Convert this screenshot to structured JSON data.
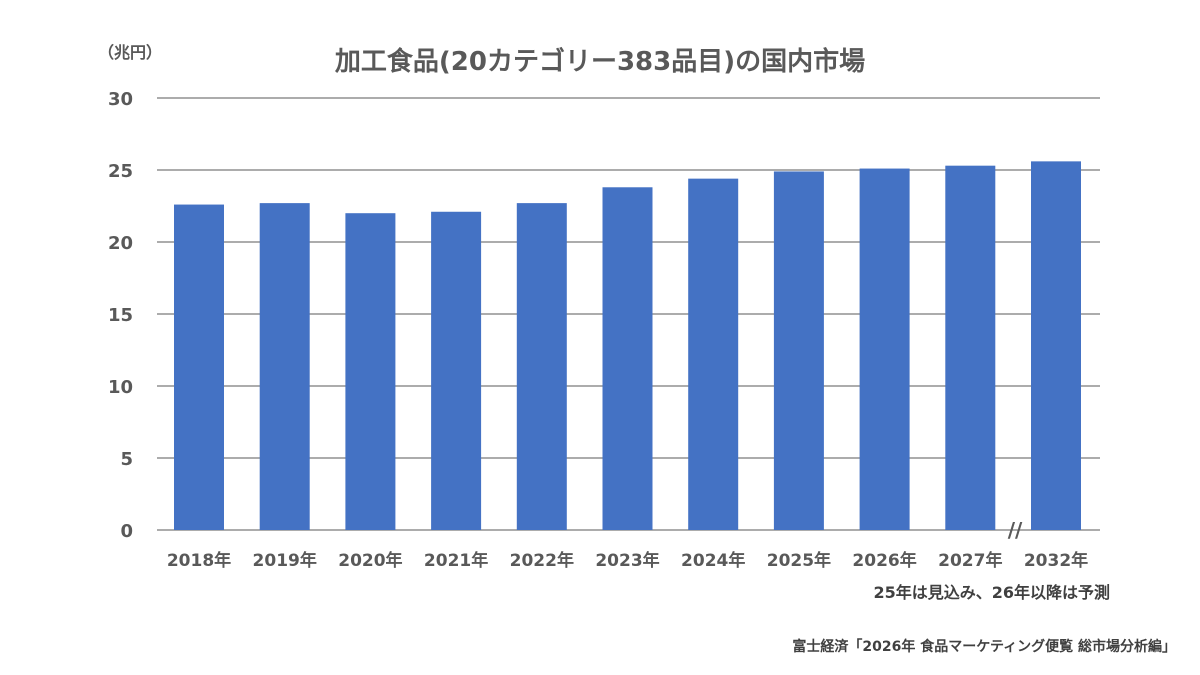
{
  "chart_data": {
    "type": "bar",
    "title": "加工食品(20カテゴリー383品目)の国内市場",
    "unit_label": "（兆円）",
    "categories": [
      "2018年",
      "2019年",
      "2020年",
      "2021年",
      "2022年",
      "2023年",
      "2024年",
      "2025年",
      "2026年",
      "2027年",
      "2032年"
    ],
    "series": [
      {
        "values": [
          22.6,
          22.7,
          22.0,
          22.1,
          22.7,
          23.8,
          24.4,
          24.9,
          25.1,
          25.3,
          25.6
        ],
        "color": "#4472C4"
      }
    ],
    "ylim": [
      0,
      30
    ],
    "yticks": [
      0,
      5,
      10,
      15,
      20,
      25,
      30
    ],
    "grid": true,
    "axis_break_after": "2027年",
    "axis_break_symbol": "//",
    "note": "25年は見込み、26年以降は予測",
    "source": "富士経済「2026年 食品マーケティング便覧 総市場分析編」"
  }
}
